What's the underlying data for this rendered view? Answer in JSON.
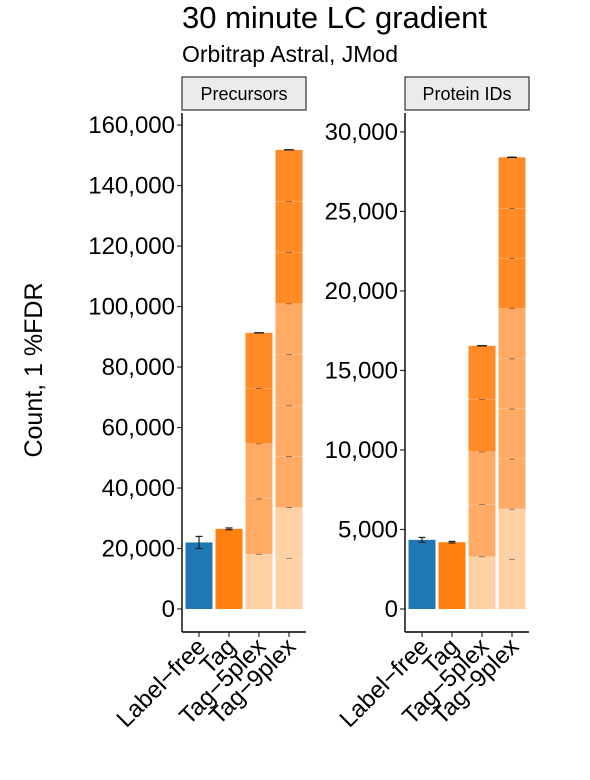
{
  "figure": {
    "title": "30 minute LC gradient",
    "subtitle": "Orbitrap Astral, JMod",
    "ylabel": "Count, 1 %FDR"
  },
  "colors": {
    "label_free": "#1f77b4",
    "tag": "#ff7f0e",
    "plex_light": "#ffd0a3",
    "plex_mid": "#ffab66",
    "plex_dark": "#ff8a26",
    "strip_fill": "#ebebeb"
  },
  "chart_data": [
    {
      "type": "bar",
      "panel": "Precursors",
      "categories": [
        "Label−free",
        "Tag",
        "Tag−5plex",
        "Tag−9plex"
      ],
      "ylim": [
        0,
        163000
      ],
      "yticks": [
        0,
        20000,
        40000,
        60000,
        80000,
        100000,
        120000,
        140000,
        160000
      ],
      "ytick_labels": [
        "0",
        "20,000",
        "40,000",
        "60,000",
        "80,000",
        "100,000",
        "120,000",
        "140,000",
        "160,000"
      ],
      "series": [
        {
          "category": "Label−free",
          "segments": [
            22000
          ],
          "error": 2000,
          "stacked": false
        },
        {
          "category": "Tag",
          "segments": [
            26500
          ],
          "error": 300,
          "stacked": false
        },
        {
          "category": "Tag−5plex",
          "segments": [
            18200,
            18300,
            18200,
            18300,
            18300
          ],
          "error": 300,
          "stacked": true
        },
        {
          "category": "Tag−9plex",
          "segments": [
            16800,
            16800,
            16900,
            16800,
            16900,
            16800,
            16900,
            16900,
            17000
          ],
          "error": 300,
          "stacked": true
        }
      ]
    },
    {
      "type": "bar",
      "panel": "Protein IDs",
      "categories": [
        "Label−free",
        "Tag",
        "Tag−5plex",
        "Tag−9plex"
      ],
      "ylim": [
        0,
        31000
      ],
      "yticks": [
        0,
        5000,
        10000,
        15000,
        20000,
        25000,
        30000
      ],
      "ytick_labels": [
        "0",
        "5,000",
        "10,000",
        "15,000",
        "20,000",
        "25,000",
        "30,000"
      ],
      "series": [
        {
          "category": "Label−free",
          "segments": [
            4350
          ],
          "error": 150,
          "stacked": false
        },
        {
          "category": "Tag",
          "segments": [
            4200
          ],
          "error": 50,
          "stacked": false
        },
        {
          "category": "Tag−5plex",
          "segments": [
            3300,
            3300,
            3300,
            3300,
            3350
          ],
          "error": 50,
          "stacked": true
        },
        {
          "category": "Tag−9plex",
          "segments": [
            3150,
            3150,
            3150,
            3150,
            3150,
            3150,
            3150,
            3150,
            3200
          ],
          "error": 50,
          "stacked": true
        }
      ]
    }
  ]
}
